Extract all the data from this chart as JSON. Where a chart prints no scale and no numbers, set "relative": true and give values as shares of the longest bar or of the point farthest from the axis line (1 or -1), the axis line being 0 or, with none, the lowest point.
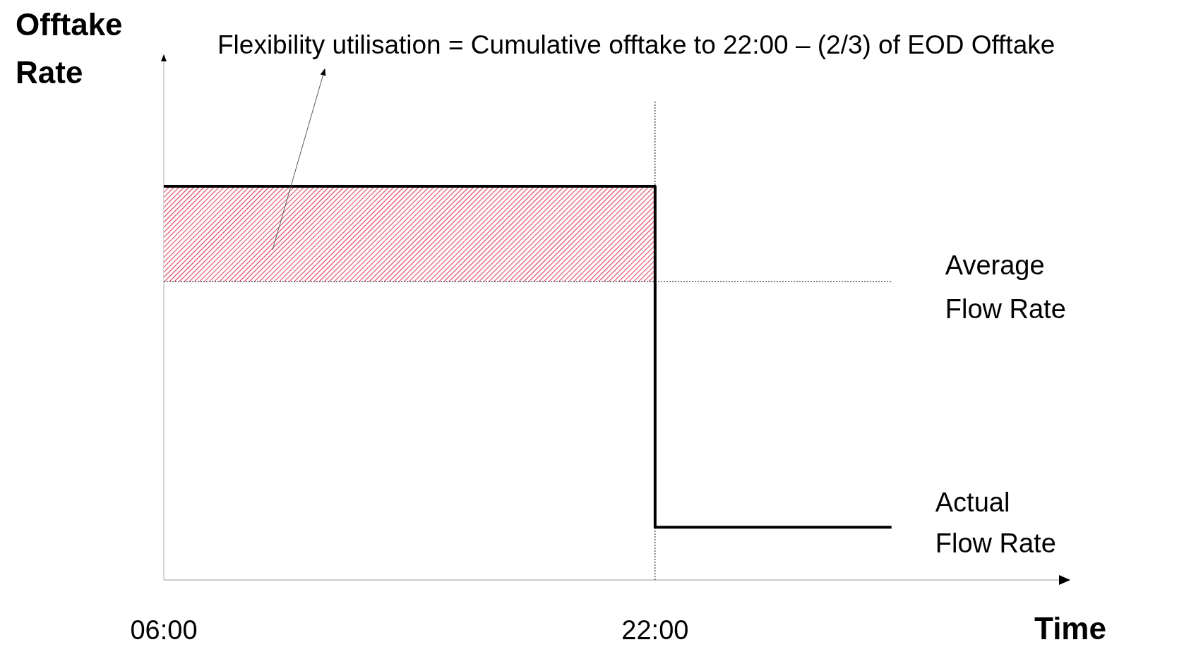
{
  "chart_data": {
    "type": "step",
    "relative": true,
    "xlabel": "Time",
    "ylabel": "Offtake Rate",
    "x": [
      6,
      22,
      29.7
    ],
    "xlim": [
      6,
      35.5
    ],
    "xticks": [
      {
        "value": 6,
        "label": "06:00"
      },
      {
        "value": 22,
        "label": "22:00"
      }
    ],
    "series": [
      {
        "name": "Actual Flow Rate",
        "values": [
          1,
          0.134,
          0.134
        ],
        "color": "#000000"
      }
    ],
    "bands": [
      {
        "axis": "y",
        "from": 0.758,
        "to": 1,
        "color": "#e0405a"
      }
    ],
    "ref_lines": [
      {
        "axis": "y",
        "value": 0.758,
        "label": "Average Flow Rate",
        "line_style": "dotted"
      },
      {
        "axis": "x",
        "value": 22,
        "line_style": "dotted"
      }
    ],
    "annotations": [
      "Flexibility utilisation = Cumulative offtake to 22:00 – (2/3) of EOD Offtake"
    ]
  }
}
